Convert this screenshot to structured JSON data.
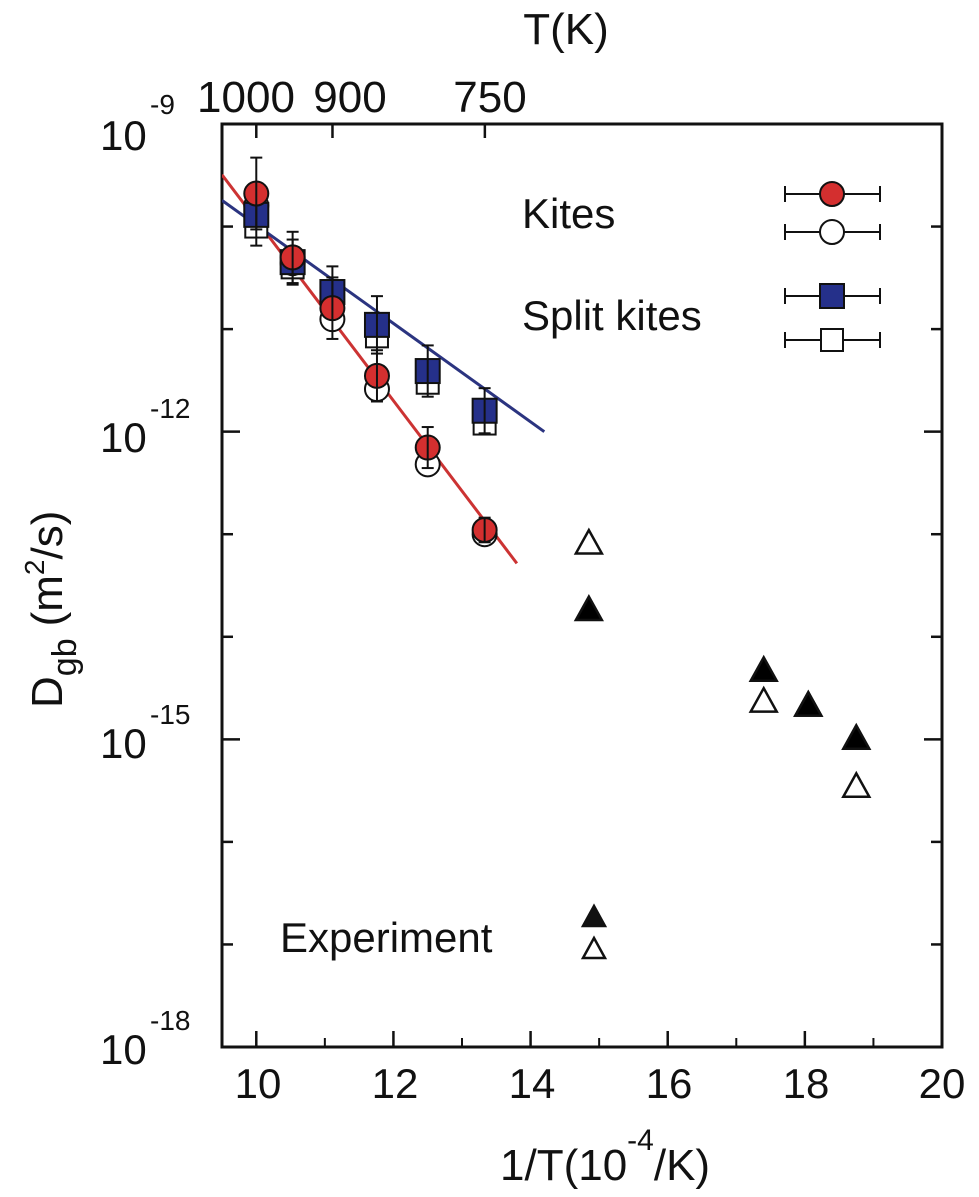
{
  "chart_data": {
    "type": "scatter",
    "x_axis": {
      "label_main": "1/T(10",
      "label_exp": "-4",
      "label_tail": "/K)",
      "range": [
        9.5,
        20
      ],
      "ticks": [
        10,
        12,
        14,
        16,
        18,
        20
      ],
      "tick_labels": [
        "10",
        "12",
        "14",
        "16",
        "18",
        "20"
      ]
    },
    "top_axis": {
      "label": "T(K)",
      "ticks_K": [
        1000,
        900,
        750
      ],
      "tick_labels": [
        "1000",
        "900",
        "750"
      ],
      "exponent_label": "-9"
    },
    "y_axis": {
      "label_main": "D",
      "label_sub": "gb",
      "label_units_open": "(m",
      "label_units_exp": "2",
      "label_units_close": "/s)",
      "scale": "log",
      "range": [
        1e-18,
        1e-09
      ],
      "major_ticks": [
        {
          "value": 1e-12,
          "base": "10",
          "exp": "-12"
        },
        {
          "value": 1e-15,
          "base": "10",
          "exp": "-15"
        },
        {
          "value": 1e-18,
          "base": "10",
          "exp": "-18"
        }
      ],
      "top_base": "10"
    },
    "legend": {
      "kites": "Kites",
      "split_kites": "Split kites",
      "experiment": "Experiment"
    },
    "colors": {
      "kites": "#d42f2f",
      "split_kites": "#25308a",
      "kites_line": "#cc3333",
      "split_line": "#2b3480",
      "experiment": "#000000"
    },
    "series": [
      {
        "key": "kites_filled",
        "points": [
          {
            "x": 10.0,
            "y": 2.1e-10,
            "err": 0.35
          },
          {
            "x": 10.53,
            "y": 5e-11,
            "err": 0.25
          },
          {
            "x": 11.11,
            "y": 1.6e-11,
            "err": 0.3
          },
          {
            "x": 11.76,
            "y": 3.5e-12,
            "err": 0.25
          },
          {
            "x": 12.5,
            "y": 7e-13,
            "err": 0.2
          },
          {
            "x": 13.33,
            "y": 1.1e-13,
            "err": 0.12
          }
        ]
      },
      {
        "key": "kites_open",
        "points": [
          {
            "x": 10.0,
            "y": 1.6e-10
          },
          {
            "x": 10.53,
            "y": 4.4e-11
          },
          {
            "x": 11.11,
            "y": 1.25e-11
          },
          {
            "x": 11.76,
            "y": 2.6e-12
          },
          {
            "x": 12.5,
            "y": 4.8e-13
          },
          {
            "x": 13.33,
            "y": 1e-13
          }
        ]
      },
      {
        "key": "split_filled",
        "points": [
          {
            "x": 10.0,
            "y": 1.3e-10,
            "err": 0.3
          },
          {
            "x": 10.53,
            "y": 4.5e-11,
            "err": 0.22
          },
          {
            "x": 11.11,
            "y": 2.3e-11,
            "err": 0.25
          },
          {
            "x": 11.76,
            "y": 1.1e-11,
            "err": 0.28
          },
          {
            "x": 12.5,
            "y": 3.9e-12,
            "err": 0.25
          },
          {
            "x": 13.33,
            "y": 1.6e-12,
            "err": 0.22
          }
        ]
      },
      {
        "key": "split_open",
        "points": [
          {
            "x": 10.0,
            "y": 1e-10
          },
          {
            "x": 10.53,
            "y": 4e-11
          },
          {
            "x": 11.11,
            "y": 1.9e-11
          },
          {
            "x": 11.76,
            "y": 8.5e-12
          },
          {
            "x": 12.5,
            "y": 3e-12
          },
          {
            "x": 13.33,
            "y": 1.2e-12
          }
        ]
      },
      {
        "key": "experiment_filled",
        "points": [
          {
            "x": 14.85,
            "y": 1.8e-14
          },
          {
            "x": 17.4,
            "y": 4.6e-15
          },
          {
            "x": 18.05,
            "y": 2.1e-15
          },
          {
            "x": 18.75,
            "y": 1e-15
          }
        ]
      },
      {
        "key": "experiment_open",
        "points": [
          {
            "x": 14.85,
            "y": 8e-14
          },
          {
            "x": 17.4,
            "y": 2.3e-15
          },
          {
            "x": 18.05,
            "y": 2.1e-15
          },
          {
            "x": 18.75,
            "y": 3.4e-16
          }
        ]
      }
    ],
    "fits": [
      {
        "key": "kites_fit",
        "x": [
          9.5,
          13.8
        ],
        "y": [
          3.2e-10,
          5.2e-14
        ]
      },
      {
        "key": "split_fit",
        "x": [
          9.5,
          14.2
        ],
        "y": [
          1.8e-10,
          1e-12
        ]
      }
    ]
  }
}
